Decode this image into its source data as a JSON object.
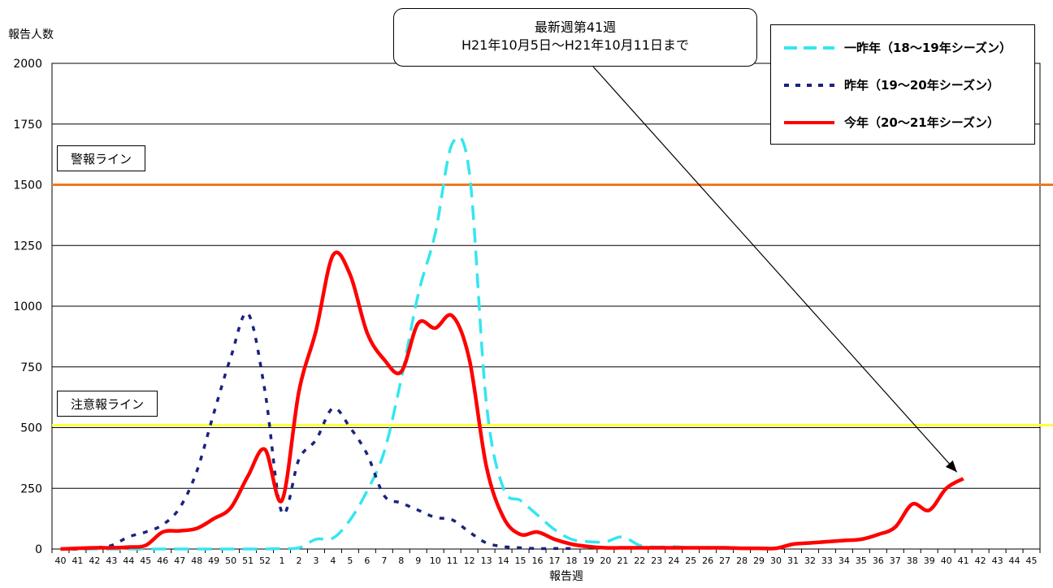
{
  "chart_data": {
    "type": "line",
    "ylabel": "報告人数",
    "xlabel": "報告週",
    "ylim": [
      0,
      2000
    ],
    "y_ticks": [
      0,
      250,
      500,
      750,
      1000,
      1250,
      1500,
      1750,
      2000
    ],
    "x": [
      "40",
      "41",
      "42",
      "43",
      "44",
      "45",
      "46",
      "47",
      "48",
      "49",
      "50",
      "51",
      "52",
      "1",
      "2",
      "3",
      "4",
      "5",
      "6",
      "7",
      "8",
      "9",
      "10",
      "11",
      "12",
      "13",
      "14",
      "15",
      "16",
      "17",
      "18",
      "19",
      "20",
      "21",
      "22",
      "23",
      "24",
      "25",
      "26",
      "27",
      "28",
      "29",
      "30",
      "31",
      "32",
      "33",
      "34",
      "35",
      "36",
      "37",
      "38",
      "39",
      "40",
      "41",
      "42",
      "43",
      "44",
      "45"
    ],
    "series": [
      {
        "name": "一昨年（18～19年シーズン）",
        "color": "#33E6F0",
        "dash": "long",
        "values": [
          0,
          0,
          0,
          0,
          0,
          0,
          0,
          0,
          0,
          0,
          0,
          0,
          0,
          2,
          5,
          40,
          45,
          120,
          240,
          400,
          700,
          1050,
          1300,
          1670,
          1550,
          600,
          250,
          200,
          140,
          80,
          40,
          30,
          30,
          50,
          15,
          8,
          10,
          5,
          3,
          2,
          2,
          2,
          2,
          null,
          null,
          null,
          null,
          null,
          null,
          null,
          null,
          null,
          null,
          null,
          null,
          null,
          null,
          null
        ]
      },
      {
        "name": "昨年（19～20年シーズン）",
        "color": "#1A237E",
        "dash": "short",
        "values": [
          0,
          0,
          5,
          15,
          50,
          70,
          100,
          170,
          320,
          560,
          790,
          970,
          650,
          150,
          370,
          450,
          580,
          500,
          390,
          220,
          190,
          160,
          130,
          120,
          70,
          25,
          10,
          5,
          2,
          2,
          2,
          null,
          null,
          null,
          null,
          null,
          null,
          null,
          null,
          null,
          null,
          null,
          null,
          null,
          null,
          null,
          null,
          null,
          null,
          null,
          null,
          null,
          null,
          null,
          null,
          null,
          null,
          null
        ]
      },
      {
        "name": "今年（20～21年シーズン）",
        "color": "#FF0000",
        "dash": "solid",
        "values": [
          0,
          3,
          5,
          5,
          8,
          15,
          70,
          75,
          85,
          125,
          170,
          300,
          410,
          200,
          650,
          900,
          1210,
          1130,
          890,
          780,
          730,
          930,
          910,
          960,
          780,
          340,
          130,
          60,
          70,
          40,
          20,
          10,
          5,
          5,
          5,
          5,
          5,
          5,
          5,
          5,
          3,
          3,
          3,
          20,
          25,
          30,
          35,
          40,
          60,
          90,
          185,
          160,
          250,
          290,
          null,
          null,
          null,
          null
        ]
      }
    ],
    "reference_lines": [
      {
        "label": "警報ライン",
        "value": 1500,
        "color": "#F07820"
      },
      {
        "label": "注意報ライン",
        "value": 510,
        "color": "#FFFF3C"
      }
    ],
    "annotation": {
      "line1": "最新週第41週",
      "line2": "H21年10月5日～H21年10月11日まで"
    },
    "grid": true,
    "legend_placement": "top-right"
  }
}
